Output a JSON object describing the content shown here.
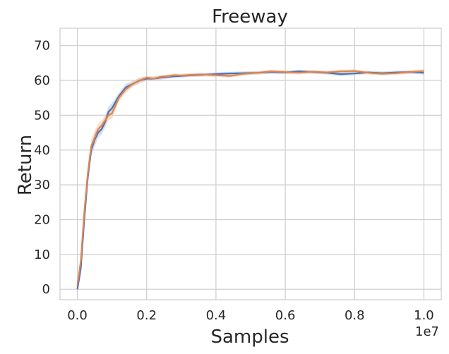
{
  "chart_data": {
    "type": "line",
    "title": "Freeway",
    "xlabel": "Samples",
    "ylabel": "Return",
    "x_offset_label": "1e7",
    "xlim": [
      -0.05,
      1.05
    ],
    "ylim": [
      -3,
      75
    ],
    "xticks": [
      0.0,
      0.2,
      0.4,
      0.6,
      0.8,
      1.0
    ],
    "xtick_labels": [
      "0.0",
      "0.2",
      "0.4",
      "0.6",
      "0.8",
      "1.0"
    ],
    "yticks": [
      0,
      10,
      20,
      30,
      40,
      50,
      60,
      70
    ],
    "ytick_labels": [
      "0",
      "10",
      "20",
      "30",
      "40",
      "50",
      "60",
      "70"
    ],
    "grid": true,
    "legend": "none",
    "series": [
      {
        "color": "#4c72b0",
        "band_color": "#aec7e8",
        "x": [
          0.0,
          0.01,
          0.02,
          0.03,
          0.04,
          0.05,
          0.06,
          0.07,
          0.08,
          0.09,
          0.1,
          0.12,
          0.14,
          0.16,
          0.18,
          0.2,
          0.22,
          0.24,
          0.26,
          0.28,
          0.3,
          0.33,
          0.36,
          0.4,
          0.44,
          0.48,
          0.52,
          0.56,
          0.6,
          0.64,
          0.68,
          0.72,
          0.76,
          0.8,
          0.84,
          0.88,
          0.92,
          0.96,
          1.0
        ],
        "y": [
          0,
          6,
          20,
          32,
          40,
          43,
          45,
          46,
          48,
          51,
          52,
          55.5,
          58,
          59,
          60,
          60.5,
          60.5,
          60.8,
          61,
          61.2,
          61.3,
          61.5,
          61.6,
          61.8,
          62,
          62.1,
          62.2,
          62.4,
          62.3,
          62.6,
          62.4,
          62.2,
          61.8,
          62,
          62.3,
          62.1,
          62.3,
          62.4,
          62.2
        ],
        "band": [
          1.5,
          2,
          2.5,
          2.5,
          2,
          2,
          1.5,
          1.5,
          1.5,
          1.5,
          1.5,
          1,
          1,
          0.8,
          0.8,
          0.6,
          0.6,
          0.6,
          0.5,
          0.5,
          0.5,
          0.5,
          0.5,
          0.5,
          0.5,
          0.5,
          0.5,
          0.5,
          0.5,
          0.5,
          0.5,
          0.5,
          0.6,
          0.5,
          0.5,
          0.5,
          0.5,
          0.5,
          0.5
        ]
      },
      {
        "color": "#dd8452",
        "band_color": "#f4c7a6",
        "x": [
          0.0,
          0.01,
          0.02,
          0.03,
          0.04,
          0.05,
          0.06,
          0.07,
          0.08,
          0.09,
          0.1,
          0.12,
          0.14,
          0.16,
          0.18,
          0.2,
          0.22,
          0.24,
          0.26,
          0.28,
          0.3,
          0.33,
          0.36,
          0.4,
          0.44,
          0.48,
          0.52,
          0.56,
          0.6,
          0.64,
          0.68,
          0.72,
          0.76,
          0.8,
          0.84,
          0.88,
          0.92,
          0.96,
          1.0
        ],
        "y": [
          1,
          8,
          22,
          33,
          41,
          43.5,
          46,
          47,
          48.5,
          50,
          50.5,
          55,
          57.5,
          59,
          60,
          60.8,
          60.5,
          61,
          61.2,
          61.5,
          61.4,
          61.6,
          61.7,
          61.5,
          61.3,
          61.9,
          62.2,
          62.6,
          62.4,
          62.2,
          62.5,
          62.3,
          62.6,
          62.7,
          62.2,
          61.9,
          62.1,
          62.4,
          62.7
        ],
        "band": [
          1.5,
          2,
          2.5,
          2.5,
          2,
          2,
          1.5,
          1.5,
          1.5,
          1.5,
          1.5,
          1,
          1,
          0.8,
          0.8,
          0.6,
          0.6,
          0.6,
          0.5,
          0.5,
          0.5,
          0.5,
          0.5,
          0.5,
          0.5,
          0.5,
          0.5,
          0.5,
          0.5,
          0.5,
          0.5,
          0.5,
          0.5,
          0.5,
          0.5,
          0.5,
          0.5,
          0.5,
          0.5
        ]
      }
    ]
  }
}
